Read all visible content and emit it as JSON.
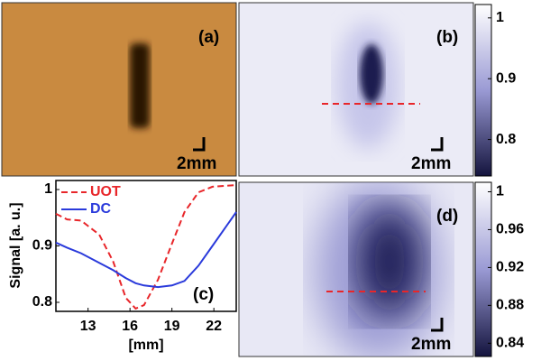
{
  "chart_data": [
    {
      "type": "image",
      "label": "(a)",
      "scale_label": "2mm"
    },
    {
      "type": "heatmap",
      "label": "(b)",
      "scale_label": "2mm",
      "ylim": [
        0.74,
        1.022
      ],
      "yticks": [
        0.8,
        0.9,
        1
      ]
    },
    {
      "type": "line",
      "label": "(c)",
      "ylabel": "Signal [a. u.]",
      "xlabel": "[mm]",
      "x": [
        10.7,
        11.5,
        12.5,
        13.8,
        14.8,
        15.7,
        16.4,
        17,
        18,
        19,
        19.9,
        20.9,
        21.9,
        23.6
      ],
      "series": [
        {
          "name": "UOT",
          "color": "#e8262a",
          "dashed": true,
          "values": [
            0.957,
            0.947,
            0.945,
            0.92,
            0.872,
            0.808,
            0.789,
            0.795,
            0.84,
            0.904,
            0.96,
            0.995,
            1.005,
            1.008
          ]
        },
        {
          "name": "DC",
          "color": "#2a3adb",
          "dashed": false,
          "values": [
            0.906,
            0.897,
            0.887,
            0.87,
            0.857,
            0.843,
            0.834,
            0.83,
            0.827,
            0.83,
            0.838,
            0.865,
            0.9,
            0.96
          ]
        }
      ],
      "xlim": [
        10.7,
        23.6
      ],
      "xticks": [
        13,
        16,
        19,
        22
      ],
      "ylim": [
        0.784,
        1.016
      ],
      "yticks": [
        0.8,
        0.9,
        1
      ]
    },
    {
      "type": "heatmap",
      "label": "(d)",
      "scale_label": "2mm",
      "ylim": [
        0.826,
        1.01
      ],
      "yticks": [
        0.84,
        0.88,
        0.92,
        0.96,
        1
      ]
    }
  ]
}
